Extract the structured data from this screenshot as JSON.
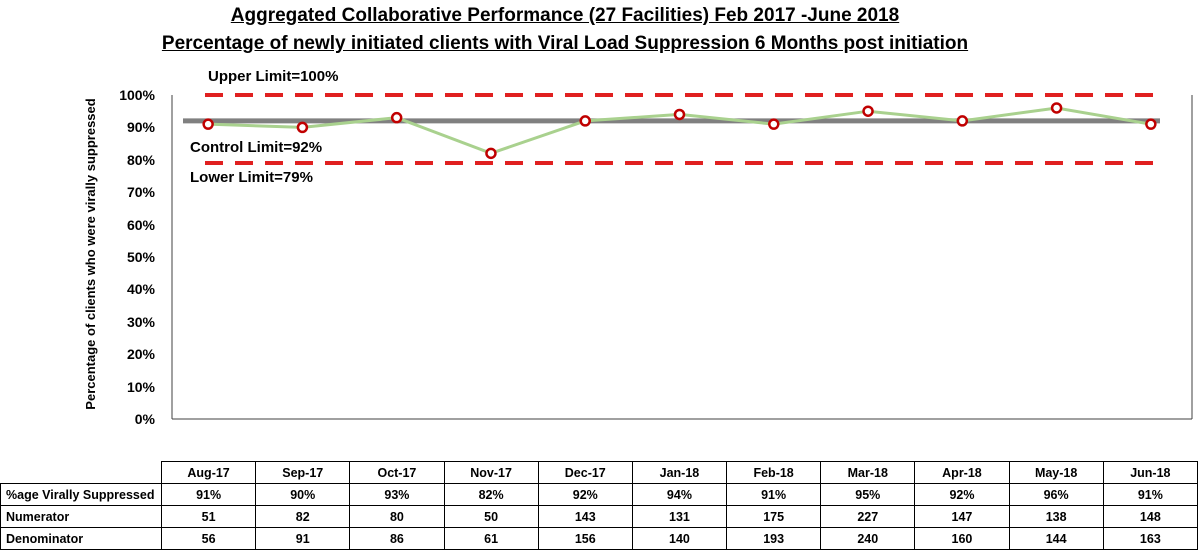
{
  "titles": {
    "line1": "Aggregated Collaborative Performance (27 Facilities) Feb 2017 -June 2018",
    "line2": "Percentage of newly initiated clients with Viral Load Suppression 6 Months post initiation"
  },
  "limits": {
    "upper_label": "Upper Limit=100%",
    "control_label": "Control Limit=92%",
    "lower_label": "Lower Limit=79%"
  },
  "chart_data": {
    "type": "line",
    "title": "Aggregated Collaborative Performance (27 Facilities) Feb 2017 -June 2018",
    "subtitle": "Percentage of newly initiated clients with Viral Load Suppression 6 Months post initiation",
    "xlabel": "",
    "ylabel": "Percentage of clients who were virally suppressed",
    "ylim": [
      0,
      100
    ],
    "y_ticks": [
      "0%",
      "10%",
      "20%",
      "30%",
      "40%",
      "50%",
      "60%",
      "70%",
      "80%",
      "90%",
      "100%"
    ],
    "categories": [
      "Aug-17",
      "Sep-17",
      "Oct-17",
      "Nov-17",
      "Dec-17",
      "Jan-18",
      "Feb-18",
      "Mar-18",
      "Apr-18",
      "May-18",
      "Jun-18"
    ],
    "series": [
      {
        "name": "%age Virally Suppressed",
        "values": [
          91,
          90,
          93,
          82,
          92,
          94,
          91,
          95,
          92,
          96,
          91
        ],
        "color": "#a9d18e",
        "marker_color": "#c00000"
      }
    ],
    "reference_lines": [
      {
        "label": "Upper Limit=100%",
        "value": 100,
        "style": "dashed",
        "color": "#e02020"
      },
      {
        "label": "Control Limit=92%",
        "value": 92,
        "style": "solid",
        "color": "#808080"
      },
      {
        "label": "Lower Limit=79%",
        "value": 79,
        "style": "dashed",
        "color": "#e02020"
      }
    ],
    "grid": false,
    "legend": "none"
  },
  "table": {
    "rows": [
      {
        "label": "%age Virally Suppressed",
        "values": [
          "91%",
          "90%",
          "93%",
          "82%",
          "92%",
          "94%",
          "91%",
          "95%",
          "92%",
          "96%",
          "91%"
        ]
      },
      {
        "label": "Numerator",
        "values": [
          "51",
          "82",
          "80",
          "50",
          "143",
          "131",
          "175",
          "227",
          "147",
          "138",
          "148"
        ]
      },
      {
        "label": "Denominator",
        "values": [
          "56",
          "91",
          "86",
          "61",
          "156",
          "140",
          "193",
          "240",
          "160",
          "144",
          "163"
        ]
      }
    ]
  }
}
